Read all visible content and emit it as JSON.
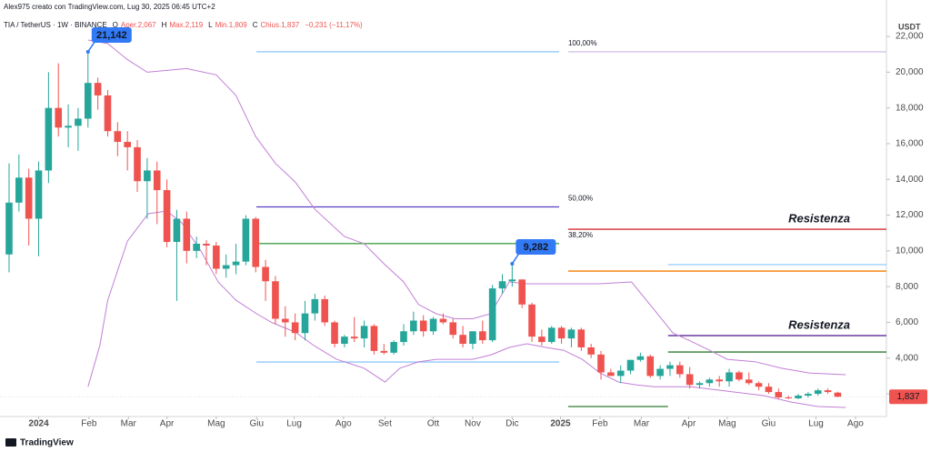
{
  "chart_data": {
    "type": "candlestick",
    "watermark": "Alex975 creato con TradingView.com, Lug 30, 2025 06:45 UTC+2",
    "header": {
      "symbol": "TIA / TetherUS · 1W · BINANCE",
      "fields": [
        {
          "key": "O",
          "text": "Aper.2,067"
        },
        {
          "key": "H",
          "text": "Max.2,119"
        },
        {
          "key": "L",
          "text": "Min.1,809"
        },
        {
          "key": "C",
          "text": "Chius.1,837"
        }
      ],
      "change": "−0,231 (−11,17%)"
    },
    "y_unit": "USDT",
    "brand": "TradingView",
    "up_color": "#26a69a",
    "down_color": "#ef5350",
    "open": [
      9800,
      12700,
      14100,
      11800,
      14500,
      18000,
      16900,
      17000,
      17400,
      19400,
      18700,
      16700,
      16100,
      15800,
      13900,
      14500,
      13400,
      10500,
      11800,
      10000,
      10400,
      10300,
      9000,
      9200,
      9400,
      11800,
      9100,
      8300,
      6200,
      6000,
      5400,
      6500,
      7300,
      6000,
      4800,
      5200,
      5100,
      5800,
      4400,
      4300,
      4900,
      5500,
      6100,
      5500,
      6200,
      6000,
      5300,
      4800,
      5500,
      5000,
      7900,
      8300,
      8400,
      7000,
      5200,
      4900,
      5700,
      5100,
      5600,
      4600,
      4200,
      3200,
      3000,
      3300,
      3900,
      4100,
      3000,
      3400,
      3600,
      3100,
      2500,
      2600,
      2800,
      2700,
      3200,
      2800,
      2600,
      2400,
      2100,
      1800,
      1750,
      1900,
      2000,
      2200,
      2067
    ],
    "high": [
      14900,
      15400,
      14600,
      15000,
      20000,
      20500,
      18200,
      18000,
      21142,
      19700,
      19000,
      17200,
      16700,
      16200,
      15200,
      15000,
      14000,
      12300,
      12200,
      10800,
      10600,
      10500,
      9800,
      10400,
      12000,
      11900,
      9500,
      8600,
      6900,
      6500,
      7200,
      7600,
      7500,
      6100,
      5300,
      6300,
      6100,
      5900,
      4800,
      5000,
      5900,
      6600,
      6400,
      6300,
      6500,
      6200,
      5800,
      5500,
      6100,
      8100,
      8700,
      9282,
      8400,
      7100,
      5600,
      5800,
      5800,
      5700,
      5700,
      4800,
      4400,
      3400,
      3600,
      3900,
      4300,
      4200,
      3600,
      3800,
      3800,
      3500,
      2700,
      2900,
      3000,
      3400,
      3300,
      3200,
      2700,
      2600,
      2300,
      1900,
      2000,
      2100,
      2300,
      2300,
      2119
    ],
    "low": [
      8800,
      12200,
      10300,
      9700,
      13800,
      16400,
      15800,
      15600,
      16900,
      17900,
      16400,
      15300,
      14500,
      13300,
      11800,
      11500,
      10200,
      7200,
      9300,
      9600,
      9200,
      8700,
      8500,
      8700,
      9200,
      8800,
      7200,
      5900,
      5200,
      5000,
      5000,
      6100,
      5800,
      4600,
      4600,
      4900,
      4600,
      4200,
      4200,
      4200,
      4700,
      5300,
      5200,
      5300,
      5900,
      5100,
      4600,
      4500,
      4800,
      4900,
      7600,
      8000,
      6800,
      4900,
      4700,
      4800,
      4800,
      4600,
      4400,
      4000,
      2800,
      3000,
      2600,
      3100,
      3800,
      2900,
      2800,
      3000,
      2900,
      2300,
      2300,
      2400,
      2400,
      2400,
      2700,
      2500,
      2200,
      2000,
      1700,
      1700,
      1700,
      1800,
      1900,
      2000,
      1809
    ],
    "close": [
      12700,
      14100,
      11800,
      14500,
      18000,
      16900,
      17000,
      17400,
      19400,
      18700,
      16700,
      16100,
      15800,
      13900,
      14500,
      13400,
      10500,
      11800,
      10000,
      10400,
      10300,
      9000,
      9200,
      9400,
      11800,
      9100,
      8300,
      6200,
      6000,
      5400,
      6500,
      7300,
      6000,
      4800,
      5200,
      5100,
      5800,
      4400,
      4300,
      4900,
      5500,
      6100,
      5500,
      6200,
      6000,
      5300,
      4800,
      5500,
      5000,
      7900,
      8300,
      8400,
      7000,
      5200,
      4900,
      5700,
      5100,
      5600,
      4600,
      4200,
      3200,
      3000,
      3300,
      3900,
      4100,
      3000,
      3400,
      3600,
      3100,
      2500,
      2600,
      2800,
      2700,
      3200,
      2800,
      2600,
      2400,
      2100,
      1800,
      1750,
      1900,
      2000,
      2200,
      2100,
      1837
    ],
    "xlim": [
      -0.92,
      88.94
    ],
    "ylim": [
      730,
      24040
    ],
    "xticks": [
      {
        "value": 3.0,
        "label": "2024"
      },
      {
        "value": 8.1,
        "label": "Feb"
      },
      {
        "value": 12.1,
        "label": "Mar"
      },
      {
        "value": 16.0,
        "label": "Apr"
      },
      {
        "value": 21.0,
        "label": "Mag"
      },
      {
        "value": 25.1,
        "label": "Giu"
      },
      {
        "value": 28.9,
        "label": "Lug"
      },
      {
        "value": 33.9,
        "label": "Ago"
      },
      {
        "value": 38.1,
        "label": "Set"
      },
      {
        "value": 43.0,
        "label": "Ott"
      },
      {
        "value": 47.0,
        "label": "Nov"
      },
      {
        "value": 51.0,
        "label": "Dic"
      },
      {
        "value": 55.9,
        "label": "2025"
      },
      {
        "value": 59.9,
        "label": "Feb"
      },
      {
        "value": 64.1,
        "label": "Mar"
      },
      {
        "value": 68.9,
        "label": "Apr"
      },
      {
        "value": 72.8,
        "label": "Mag"
      },
      {
        "value": 77.0,
        "label": "Giu"
      },
      {
        "value": 81.8,
        "label": "Lug"
      },
      {
        "value": 85.8,
        "label": "Ago"
      }
    ],
    "yticks": [
      {
        "value": 2000,
        "label": "2,000"
      },
      {
        "value": 4000,
        "label": "4,000"
      },
      {
        "value": 6000,
        "label": "6,000"
      },
      {
        "value": 8000,
        "label": "8,000"
      },
      {
        "value": 10000,
        "label": "10,000"
      },
      {
        "value": 12000,
        "label": "12,000"
      },
      {
        "value": 14000,
        "label": "14,000"
      },
      {
        "value": 16000,
        "label": "16,000"
      },
      {
        "value": 18000,
        "label": "18,000"
      },
      {
        "value": 20000,
        "label": "20,000"
      },
      {
        "value": 22000,
        "label": "22,000"
      }
    ],
    "bands": [
      {
        "color": "#c27fd6",
        "x": [
          8,
          10,
          12,
          14,
          16,
          18,
          21,
          23,
          25,
          27,
          29,
          31,
          34,
          36,
          38,
          40,
          41.5,
          43.3,
          45.2,
          47,
          48.8,
          50.7,
          52.5,
          56.2,
          59.9,
          63.1,
          65.4,
          67.3,
          69.1,
          71,
          72.8,
          75.6,
          78.3,
          81.1,
          84.8
        ],
        "values": [
          21800,
          21600,
          20700,
          20000,
          20100,
          20200,
          19850,
          18700,
          16400,
          14900,
          13860,
          12330,
          10800,
          10400,
          9280,
          8260,
          7000,
          6480,
          6200,
          6200,
          6480,
          8260,
          8160,
          8160,
          8160,
          8260,
          6700,
          5400,
          4950,
          4440,
          3930,
          3800,
          3430,
          3170,
          3070
        ]
      },
      {
        "color": "#c27fd6",
        "x": [
          8,
          9.2,
          10,
          12,
          14.1,
          16,
          17.5,
          19.4,
          21.2,
          23,
          25.1,
          26.7,
          29,
          30.9,
          33.2,
          36,
          38.1,
          39.6,
          41.5,
          43.3,
          47,
          48.9,
          50.7,
          52.5,
          54.4,
          56.2,
          58.1,
          59.9,
          61.8,
          63.6,
          65.4,
          69.1,
          72.8,
          76.5,
          79.3,
          82,
          84.8
        ],
        "values": [
          2400,
          4700,
          7240,
          10550,
          12080,
          12230,
          11570,
          10040,
          8260,
          7240,
          6480,
          5970,
          5460,
          4700,
          3930,
          3430,
          2660,
          3430,
          3790,
          3930,
          3930,
          4190,
          4600,
          4800,
          4600,
          4440,
          3930,
          3170,
          2660,
          2500,
          2400,
          2400,
          2150,
          1900,
          1540,
          1290,
          1240
        ]
      }
    ],
    "fib_levels": [
      {
        "value": 21142,
        "color": "#90caf9",
        "x": [
          25.07,
          55.76
        ],
        "label": "100,00%"
      },
      {
        "value": 12460,
        "color": "#5b3fc4",
        "x": [
          25.07,
          55.76
        ],
        "label": "50,00%"
      },
      {
        "value": 10410,
        "color": "#43a047",
        "x": [
          25.07,
          55.76
        ],
        "label": "38,20%"
      },
      {
        "value": 3780,
        "color": "#90caf9",
        "x": [
          25.07,
          55.76
        ]
      }
    ],
    "lines": [
      {
        "value": 21142,
        "color": "#d1c4e9",
        "x": [
          56.68,
          88.94
        ]
      },
      {
        "value": 11210,
        "color": "#d32f2f",
        "x": [
          56.68,
          88.94
        ],
        "label": "Resistenza",
        "label_color": "#e0445a"
      },
      {
        "value": 8870,
        "color": "#f57c00",
        "x": [
          56.68,
          88.94
        ]
      },
      {
        "value": 9230,
        "color": "#90caf9",
        "x": [
          66.8,
          88.94
        ]
      },
      {
        "value": 5260,
        "color": "#4a148c",
        "x": [
          66.8,
          88.94
        ],
        "label": "Resistenza",
        "label_color": "#ab47bc"
      },
      {
        "value": 4340,
        "color": "#2e7d32",
        "x": [
          66.8,
          88.94
        ]
      },
      {
        "value": 1290,
        "color": "#2e7d32",
        "x": [
          56.68,
          66.8
        ]
      }
    ],
    "markers": {
      "x": [
        8,
        51
      ],
      "values": [
        21142,
        9282
      ],
      "value_labels": [
        "21,142",
        "9,282"
      ],
      "color": "#3179f5"
    },
    "last_price": {
      "value": 1837,
      "label": "1,837",
      "color": "#ef5350"
    }
  }
}
